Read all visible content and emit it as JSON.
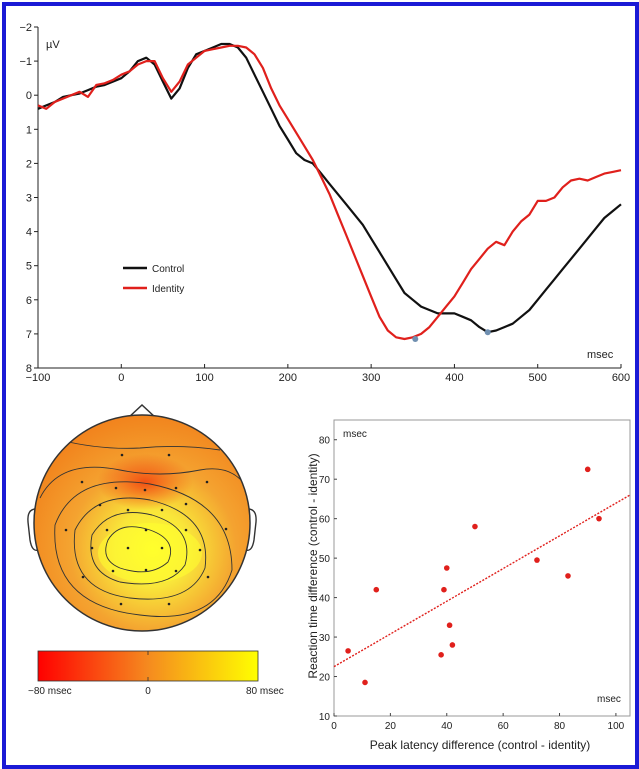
{
  "colors": {
    "frame": "#1a1ad6",
    "control": "#111111",
    "identity": "#e0201c",
    "peak_marker": "#6f8fb0",
    "scatter_point": "#e0201c",
    "colorbar_low": "#ff0000",
    "colorbar_mid": "#f58a1f",
    "colorbar_high": "#ffff00"
  },
  "chart_data": [
    {
      "type": "line",
      "ylabel": "µV",
      "xunit": "msec",
      "xlim": [
        -100,
        600
      ],
      "ylim": [
        8,
        -2
      ],
      "y_inverted": true,
      "xticks": [
        "−100",
        "0",
        "100",
        "200",
        "300",
        "400",
        "500",
        "600"
      ],
      "xtick_values": [
        -100,
        0,
        100,
        200,
        300,
        400,
        500,
        600
      ],
      "yticks": [
        "−2",
        "−1",
        "0",
        "1",
        "2",
        "3",
        "4",
        "5",
        "6",
        "7",
        "8"
      ],
      "ytick_values": [
        -2,
        -1,
        0,
        1,
        2,
        3,
        4,
        5,
        6,
        7,
        8
      ],
      "legend_position": "lower-left",
      "series": [
        {
          "name": "Control",
          "color": "#111111",
          "x": [
            -100,
            -90,
            -80,
            -70,
            -60,
            -50,
            -40,
            -30,
            -20,
            -10,
            0,
            10,
            20,
            30,
            40,
            50,
            60,
            70,
            80,
            90,
            100,
            110,
            120,
            130,
            140,
            150,
            160,
            170,
            180,
            190,
            200,
            210,
            220,
            230,
            240,
            250,
            260,
            270,
            280,
            290,
            300,
            310,
            320,
            330,
            340,
            350,
            360,
            370,
            380,
            390,
            400,
            410,
            420,
            430,
            440,
            450,
            460,
            470,
            480,
            490,
            500,
            510,
            520,
            530,
            540,
            550,
            560,
            570,
            580,
            590,
            600
          ],
          "y": [
            0.4,
            0.3,
            0.2,
            0.05,
            0,
            -0.05,
            -0.15,
            -0.25,
            -0.3,
            -0.4,
            -0.5,
            -0.7,
            -1.0,
            -1.1,
            -0.9,
            -0.4,
            0.1,
            -0.2,
            -0.8,
            -1.2,
            -1.3,
            -1.4,
            -1.5,
            -1.5,
            -1.4,
            -1.1,
            -0.6,
            -0.1,
            0.4,
            0.9,
            1.3,
            1.7,
            1.9,
            2.0,
            2.3,
            2.6,
            2.9,
            3.2,
            3.5,
            3.8,
            4.2,
            4.6,
            5.0,
            5.4,
            5.8,
            6.0,
            6.2,
            6.3,
            6.4,
            6.4,
            6.4,
            6.5,
            6.6,
            6.8,
            6.95,
            6.9,
            6.8,
            6.7,
            6.5,
            6.3,
            6.0,
            5.7,
            5.4,
            5.1,
            4.8,
            4.5,
            4.2,
            3.9,
            3.6,
            3.4,
            3.2
          ]
        },
        {
          "name": "Identity",
          "color": "#e0201c",
          "x": [
            -100,
            -90,
            -80,
            -70,
            -60,
            -50,
            -40,
            -30,
            -20,
            -10,
            0,
            10,
            20,
            30,
            40,
            50,
            60,
            70,
            80,
            90,
            100,
            110,
            120,
            130,
            140,
            150,
            160,
            170,
            180,
            190,
            200,
            210,
            220,
            230,
            240,
            250,
            260,
            270,
            280,
            290,
            300,
            310,
            320,
            330,
            340,
            350,
            360,
            370,
            380,
            390,
            400,
            410,
            420,
            430,
            440,
            450,
            460,
            470,
            480,
            490,
            500,
            510,
            520,
            530,
            540,
            550,
            560,
            570,
            580,
            590,
            600
          ],
          "y": [
            0.3,
            0.4,
            0.2,
            0.1,
            0,
            -0.1,
            0.05,
            -0.3,
            -0.35,
            -0.45,
            -0.6,
            -0.7,
            -0.9,
            -1.0,
            -1.0,
            -0.5,
            -0.1,
            -0.4,
            -0.9,
            -1.1,
            -1.3,
            -1.35,
            -1.4,
            -1.45,
            -1.45,
            -1.4,
            -1.2,
            -0.8,
            -0.2,
            0.3,
            0.7,
            1.1,
            1.5,
            1.9,
            2.4,
            2.9,
            3.5,
            4.1,
            4.7,
            5.3,
            5.9,
            6.5,
            6.9,
            7.1,
            7.15,
            7.1,
            7.0,
            6.8,
            6.5,
            6.2,
            5.9,
            5.5,
            5.1,
            4.8,
            4.5,
            4.3,
            4.4,
            4.0,
            3.7,
            3.5,
            3.1,
            3.1,
            3.0,
            2.7,
            2.5,
            2.45,
            2.5,
            2.4,
            2.3,
            2.25,
            2.2
          ]
        }
      ],
      "peaks": [
        {
          "series": "Identity",
          "x": 353,
          "y": 7.15
        },
        {
          "series": "Control",
          "x": 440,
          "y": 6.95
        }
      ]
    },
    {
      "type": "scatter",
      "xlabel": "Peak latency difference (control - identity)",
      "ylabel": "Reaction time difference (control - identity)",
      "x_unit_label": "msec",
      "y_unit_label": "msec",
      "xlim": [
        0,
        105
      ],
      "ylim": [
        10,
        85
      ],
      "xticks": [
        0,
        20,
        40,
        60,
        80,
        100
      ],
      "yticks": [
        10,
        20,
        30,
        40,
        50,
        60,
        70,
        80
      ],
      "points": [
        {
          "x": 5,
          "y": 26.5
        },
        {
          "x": 11,
          "y": 18.5
        },
        {
          "x": 15,
          "y": 42
        },
        {
          "x": 38,
          "y": 25.5
        },
        {
          "x": 39,
          "y": 42
        },
        {
          "x": 40,
          "y": 47.5
        },
        {
          "x": 41,
          "y": 33
        },
        {
          "x": 42,
          "y": 28
        },
        {
          "x": 50,
          "y": 58
        },
        {
          "x": 72,
          "y": 49.5
        },
        {
          "x": 83,
          "y": 45.5
        },
        {
          "x": 90,
          "y": 72.5
        },
        {
          "x": 94,
          "y": 60
        }
      ],
      "trend_line": {
        "x": [
          0,
          105
        ],
        "y": [
          22.5,
          66
        ]
      }
    },
    {
      "type": "heatmap",
      "subtype": "scalp topography",
      "colorbar": {
        "ticks": [
          "−80 msec",
          "0",
          "80 msec"
        ],
        "tick_values": [
          -80,
          0,
          80
        ],
        "colors": [
          "#ff0000",
          "#f58a1f",
          "#ffff00"
        ]
      }
    }
  ]
}
